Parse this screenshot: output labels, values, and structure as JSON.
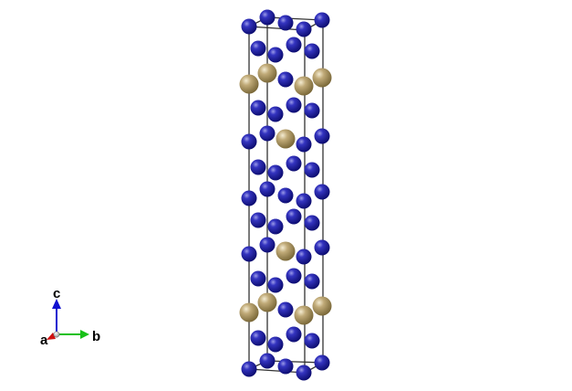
{
  "colors": {
    "background": "#ffffff",
    "cell_edge": "#333333",
    "atom_a": "#1c1ca8",
    "atom_b": "#b8a26c",
    "axis_a": "#d01010",
    "axis_b": "#18c018",
    "axis_c": "#1010d0"
  },
  "axes": {
    "a_label": "a",
    "b_label": "b",
    "c_label": "c"
  }
}
